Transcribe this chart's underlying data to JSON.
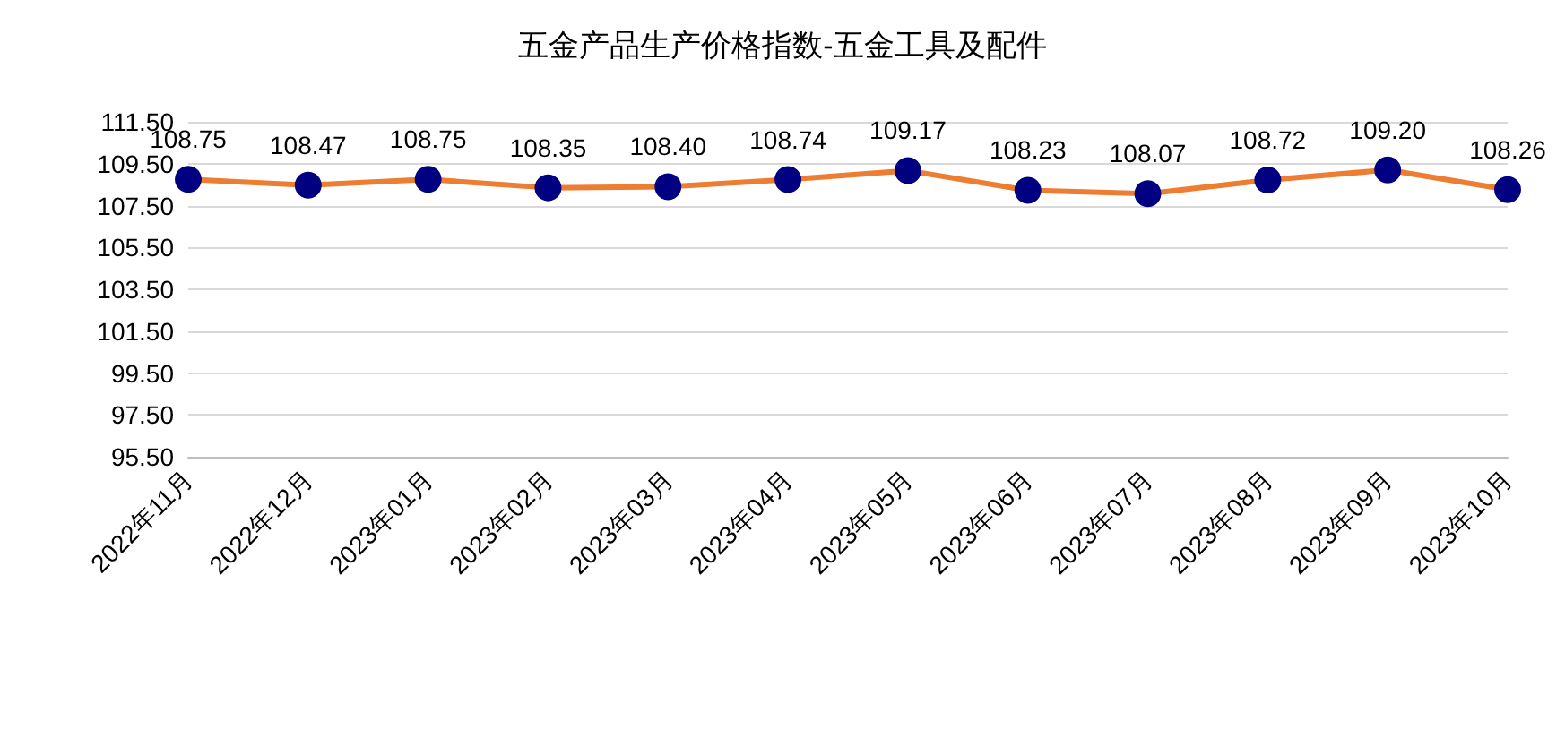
{
  "chart_data": {
    "type": "line",
    "title": "五金产品生产价格指数-五金工具及配件",
    "categories": [
      "2022年11月",
      "2022年12月",
      "2023年01月",
      "2023年02月",
      "2023年03月",
      "2023年04月",
      "2023年05月",
      "2023年06月",
      "2023年07月",
      "2023年08月",
      "2023年09月",
      "2023年10月"
    ],
    "series": [
      {
        "color": "#ed7d31",
        "colors": [
          "#000080",
          "#000080",
          "#000080",
          "#000080",
          "#000080",
          "#000080",
          "#000080",
          "#000080",
          "#000080",
          "#000080",
          "#000080",
          "#000080"
        ],
        "values": [
          108.75,
          108.47,
          108.75,
          108.35,
          108.4,
          108.74,
          109.17,
          108.23,
          108.07,
          108.72,
          109.2,
          108.26
        ],
        "value_labels": [
          "108.75",
          "108.47",
          "108.75",
          "108.35",
          "108.40",
          "108.74",
          "109.17",
          "108.23",
          "108.07",
          "108.72",
          "109.20",
          "108.26"
        ]
      }
    ],
    "ylim": [
      95.5,
      111.5
    ],
    "yticks": [
      {
        "value": 95.5,
        "label": "95.50"
      },
      {
        "value": 97.5,
        "label": "97.50"
      },
      {
        "value": 99.5,
        "label": "99.50"
      },
      {
        "value": 101.5,
        "label": "101.50"
      },
      {
        "value": 103.5,
        "label": "103.50"
      },
      {
        "value": 105.5,
        "label": "105.50"
      },
      {
        "value": 107.5,
        "label": "107.50"
      },
      {
        "value": 109.5,
        "label": "109.50"
      },
      {
        "value": 111.5,
        "label": "111.50"
      }
    ],
    "grid": "y",
    "marker": "circle",
    "line_style": "solid"
  }
}
